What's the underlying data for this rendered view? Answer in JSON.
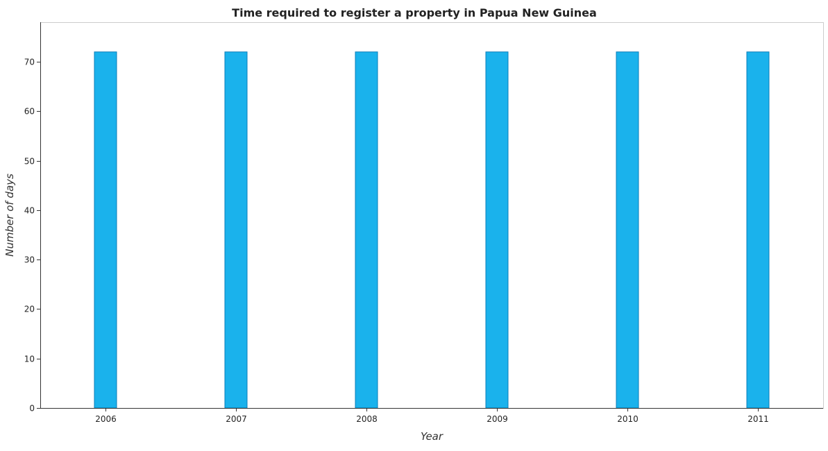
{
  "chart_data": {
    "type": "bar",
    "title": "Time required to register a property in Papua New Guinea",
    "xlabel": "Year",
    "ylabel": "Number of days",
    "categories": [
      "2006",
      "2007",
      "2008",
      "2009",
      "2010",
      "2011"
    ],
    "values": [
      72,
      72,
      72,
      72,
      72,
      72
    ],
    "ylim": [
      0,
      78
    ],
    "yticks": [
      0,
      10,
      20,
      30,
      40,
      50,
      60,
      70
    ],
    "grid": false,
    "bar_color": "#1ab2ec",
    "bar_edge_color": "#0a7db8"
  }
}
